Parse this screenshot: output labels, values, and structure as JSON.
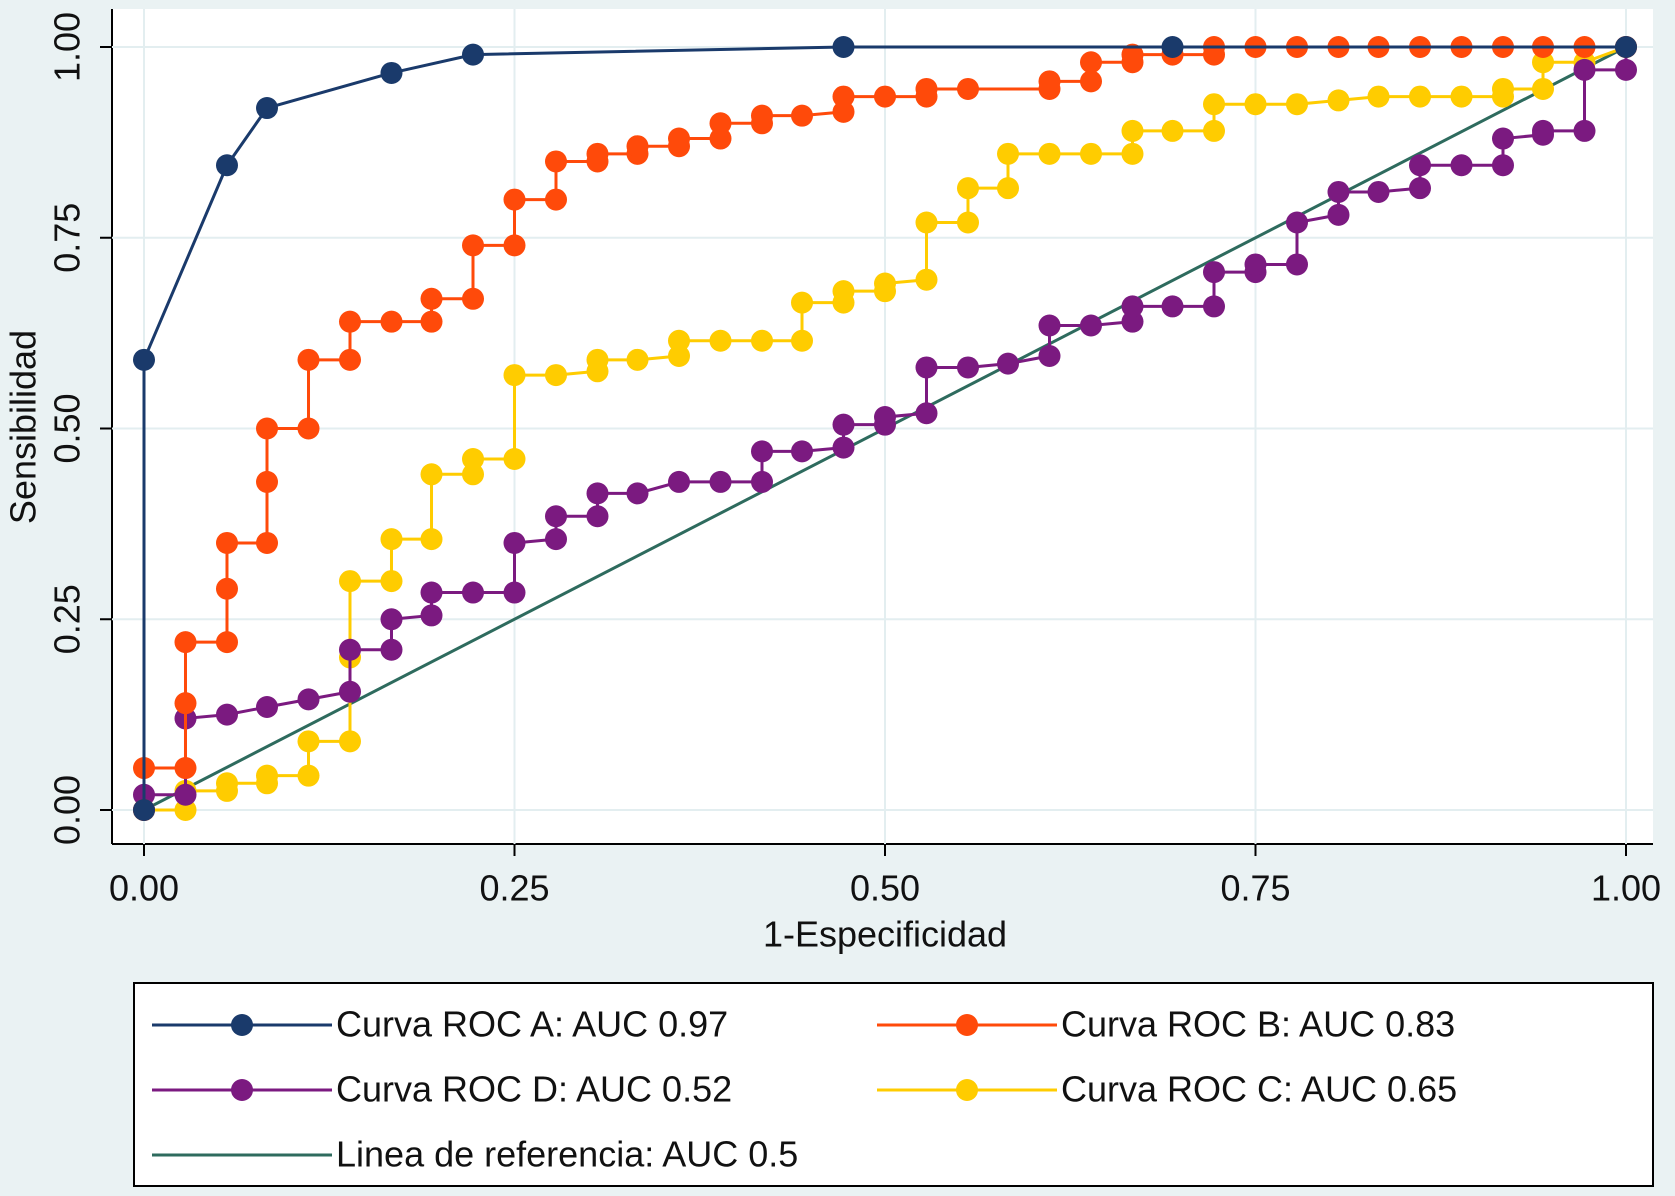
{
  "chart_data": {
    "type": "line",
    "x_label": "1-Especificidad",
    "y_label": "Sensibilidad",
    "xlim": [
      0,
      1
    ],
    "ylim": [
      0,
      1
    ],
    "xticks": [
      {
        "value": 0,
        "label": "0.00"
      },
      {
        "value": 0.25,
        "label": "0.25"
      },
      {
        "value": 0.5,
        "label": "0.50"
      },
      {
        "value": 0.75,
        "label": "0.75"
      },
      {
        "value": 1,
        "label": "1.00"
      }
    ],
    "yticks": [
      {
        "value": 0,
        "label": "0.00"
      },
      {
        "value": 0.25,
        "label": "0.25"
      },
      {
        "value": 0.5,
        "label": "0.50"
      },
      {
        "value": 0.75,
        "label": "0.75"
      },
      {
        "value": 1,
        "label": "1.00"
      }
    ],
    "grid": true,
    "legend": "bottom",
    "series": [
      {
        "name": "Curva ROC A: AUC 0.97",
        "color": "#1a3a6b",
        "marker": true,
        "x": [
          0,
          0,
          0.056,
          0.083,
          0.167,
          0.222,
          0.472,
          0.694,
          1
        ],
        "y": [
          0,
          0.59,
          0.845,
          0.92,
          0.966,
          0.99,
          1,
          1,
          1
        ]
      },
      {
        "name": "Curva ROC B: AUC 0.83",
        "color": "#ff4a0a",
        "marker": true,
        "x": [
          0,
          0,
          0.028,
          0.028,
          0.028,
          0.056,
          0.056,
          0.056,
          0.083,
          0.083,
          0.083,
          0.111,
          0.111,
          0.139,
          0.139,
          0.167,
          0.194,
          0.194,
          0.222,
          0.222,
          0.25,
          0.25,
          0.278,
          0.278,
          0.306,
          0.306,
          0.333,
          0.333,
          0.361,
          0.361,
          0.389,
          0.389,
          0.417,
          0.417,
          0.444,
          0.472,
          0.472,
          0.5,
          0.528,
          0.528,
          0.556,
          0.611,
          0.611,
          0.639,
          0.639,
          0.667,
          0.667,
          0.694,
          0.722,
          0.722,
          0.75,
          0.778,
          0.806,
          0.833,
          0.861,
          0.889,
          0.917,
          0.944,
          0.972,
          1
        ],
        "y": [
          0,
          0.055,
          0.055,
          0.14,
          0.22,
          0.22,
          0.29,
          0.35,
          0.35,
          0.43,
          0.5,
          0.5,
          0.59,
          0.59,
          0.64,
          0.64,
          0.64,
          0.67,
          0.67,
          0.74,
          0.74,
          0.8,
          0.8,
          0.85,
          0.85,
          0.86,
          0.86,
          0.87,
          0.87,
          0.88,
          0.88,
          0.9,
          0.9,
          0.91,
          0.91,
          0.915,
          0.935,
          0.935,
          0.935,
          0.945,
          0.945,
          0.945,
          0.955,
          0.955,
          0.98,
          0.98,
          0.99,
          0.99,
          0.99,
          1,
          1,
          1,
          1,
          1,
          1,
          1,
          1,
          1,
          1,
          1
        ]
      },
      {
        "name": "Curva ROC D: AUC 0.52",
        "color": "#7b1a80",
        "marker": true,
        "x": [
          0,
          0,
          0.028,
          0.028,
          0.056,
          0.083,
          0.111,
          0.139,
          0.139,
          0.167,
          0.167,
          0.194,
          0.194,
          0.222,
          0.25,
          0.25,
          0.278,
          0.278,
          0.306,
          0.306,
          0.333,
          0.361,
          0.389,
          0.417,
          0.417,
          0.444,
          0.472,
          0.472,
          0.5,
          0.5,
          0.528,
          0.528,
          0.556,
          0.583,
          0.611,
          0.611,
          0.639,
          0.667,
          0.667,
          0.694,
          0.722,
          0.722,
          0.75,
          0.75,
          0.778,
          0.778,
          0.806,
          0.806,
          0.833,
          0.861,
          0.861,
          0.889,
          0.917,
          0.917,
          0.944,
          0.944,
          0.972,
          0.972,
          1,
          1
        ],
        "y": [
          0,
          0.02,
          0.02,
          0.12,
          0.125,
          0.135,
          0.145,
          0.155,
          0.21,
          0.21,
          0.25,
          0.255,
          0.285,
          0.285,
          0.285,
          0.35,
          0.355,
          0.385,
          0.385,
          0.415,
          0.415,
          0.43,
          0.43,
          0.43,
          0.47,
          0.47,
          0.475,
          0.505,
          0.505,
          0.515,
          0.52,
          0.58,
          0.58,
          0.585,
          0.595,
          0.635,
          0.635,
          0.64,
          0.66,
          0.66,
          0.66,
          0.705,
          0.705,
          0.715,
          0.715,
          0.77,
          0.78,
          0.81,
          0.81,
          0.815,
          0.845,
          0.845,
          0.845,
          0.88,
          0.885,
          0.89,
          0.89,
          0.97,
          0.97,
          1
        ]
      },
      {
        "name": "Curva ROC C: AUC 0.65",
        "color": "#ffcc00",
        "marker": true,
        "x": [
          0,
          0.028,
          0.028,
          0.056,
          0.056,
          0.083,
          0.083,
          0.111,
          0.111,
          0.139,
          0.139,
          0.139,
          0.167,
          0.167,
          0.194,
          0.194,
          0.222,
          0.222,
          0.25,
          0.25,
          0.278,
          0.306,
          0.306,
          0.333,
          0.361,
          0.361,
          0.389,
          0.417,
          0.444,
          0.444,
          0.472,
          0.472,
          0.5,
          0.5,
          0.528,
          0.528,
          0.556,
          0.556,
          0.583,
          0.583,
          0.611,
          0.639,
          0.667,
          0.667,
          0.694,
          0.722,
          0.722,
          0.75,
          0.778,
          0.806,
          0.833,
          0.861,
          0.889,
          0.917,
          0.917,
          0.944,
          0.944,
          0.972,
          1
        ],
        "y": [
          0,
          0,
          0.025,
          0.025,
          0.035,
          0.035,
          0.045,
          0.045,
          0.09,
          0.09,
          0.2,
          0.3,
          0.3,
          0.355,
          0.355,
          0.44,
          0.44,
          0.46,
          0.46,
          0.57,
          0.57,
          0.575,
          0.59,
          0.59,
          0.595,
          0.615,
          0.615,
          0.615,
          0.615,
          0.665,
          0.665,
          0.68,
          0.68,
          0.69,
          0.695,
          0.77,
          0.77,
          0.815,
          0.815,
          0.86,
          0.86,
          0.86,
          0.86,
          0.89,
          0.89,
          0.89,
          0.925,
          0.925,
          0.925,
          0.93,
          0.935,
          0.935,
          0.935,
          0.935,
          0.945,
          0.945,
          0.98,
          0.98,
          1
        ]
      },
      {
        "name": "Linea de referencia: AUC 0.5",
        "color": "#2e6b5e",
        "marker": false,
        "x": [
          0,
          1
        ],
        "y": [
          0,
          1
        ]
      }
    ]
  }
}
